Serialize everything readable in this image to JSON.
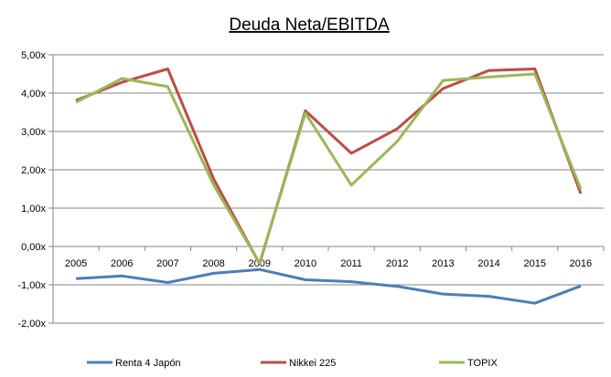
{
  "chart_data": {
    "type": "line",
    "title": "Deuda Neta/EBITDA",
    "xlabel": "",
    "ylabel": "",
    "categories": [
      "2005",
      "2006",
      "2007",
      "2008",
      "2009",
      "2010",
      "2011",
      "2012",
      "2013",
      "2014",
      "2015",
      "2016"
    ],
    "y_tick_labels": [
      "-2,00x",
      "-1,00x",
      "0,00x",
      "1,00x",
      "2,00x",
      "3,00x",
      "4,00x",
      "5,00x"
    ],
    "y_ticks": [
      -2,
      -1,
      0,
      1,
      2,
      3,
      4,
      5
    ],
    "ylim": [
      -2,
      5
    ],
    "grid": true,
    "legend_position": "bottom",
    "series": [
      {
        "name": "Renta 4 Japón",
        "color": "#4a7ebb",
        "values": [
          -0.84,
          -0.77,
          -0.94,
          -0.7,
          -0.6,
          -0.87,
          -0.92,
          -1.04,
          -1.24,
          -1.3,
          -1.48,
          -1.03
        ]
      },
      {
        "name": "Nikkei 225",
        "color": "#be4b48",
        "values": [
          3.81,
          4.28,
          4.63,
          1.76,
          -0.45,
          3.54,
          2.43,
          3.07,
          4.12,
          4.59,
          4.63,
          1.38
        ]
      },
      {
        "name": "TOPIX",
        "color": "#98b954",
        "values": [
          3.76,
          4.38,
          4.17,
          1.6,
          -0.43,
          3.48,
          1.6,
          2.74,
          4.33,
          4.42,
          4.5,
          1.5
        ]
      }
    ]
  }
}
